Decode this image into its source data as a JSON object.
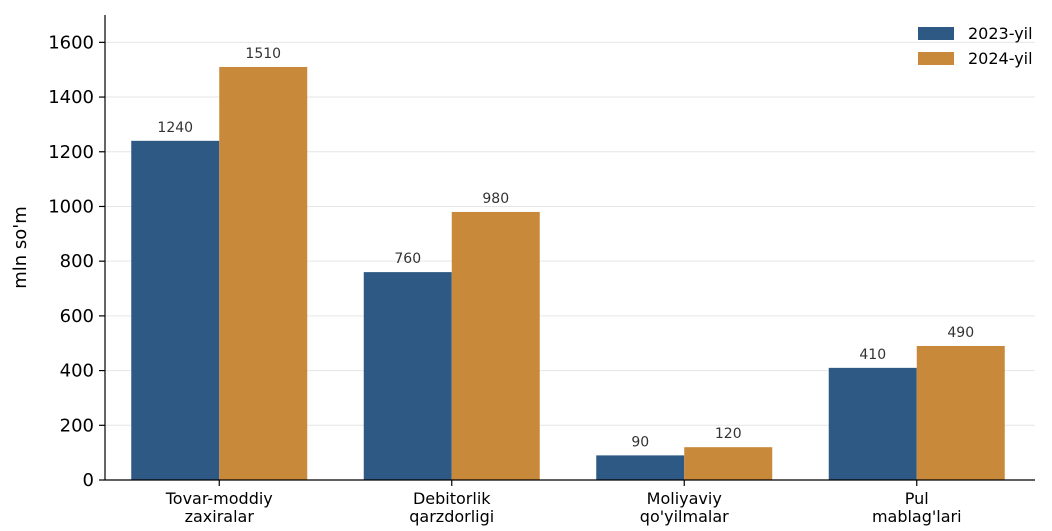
{
  "chart_data": {
    "type": "bar",
    "ylabel": "mln so'm",
    "xlabel": "",
    "title": "",
    "ylim": [
      0,
      1700
    ],
    "yticks": [
      0,
      200,
      400,
      600,
      800,
      1000,
      1200,
      1400,
      1600
    ],
    "grid": "horizontal",
    "legend_position": "top-right",
    "categories": [
      [
        "Tovar-moddiy",
        "zaxiralar"
      ],
      [
        "Debitorlik",
        "qarzdorligi"
      ],
      [
        "Moliyaviy",
        "qo'yilmalar"
      ],
      [
        "Pul",
        "mablag'lari"
      ]
    ],
    "series": [
      {
        "name": "2023-yil",
        "color": "#2e5984",
        "values": [
          1240,
          760,
          90,
          410
        ]
      },
      {
        "name": "2024-yil",
        "color": "#c8893a",
        "values": [
          1510,
          980,
          120,
          490
        ]
      }
    ]
  }
}
